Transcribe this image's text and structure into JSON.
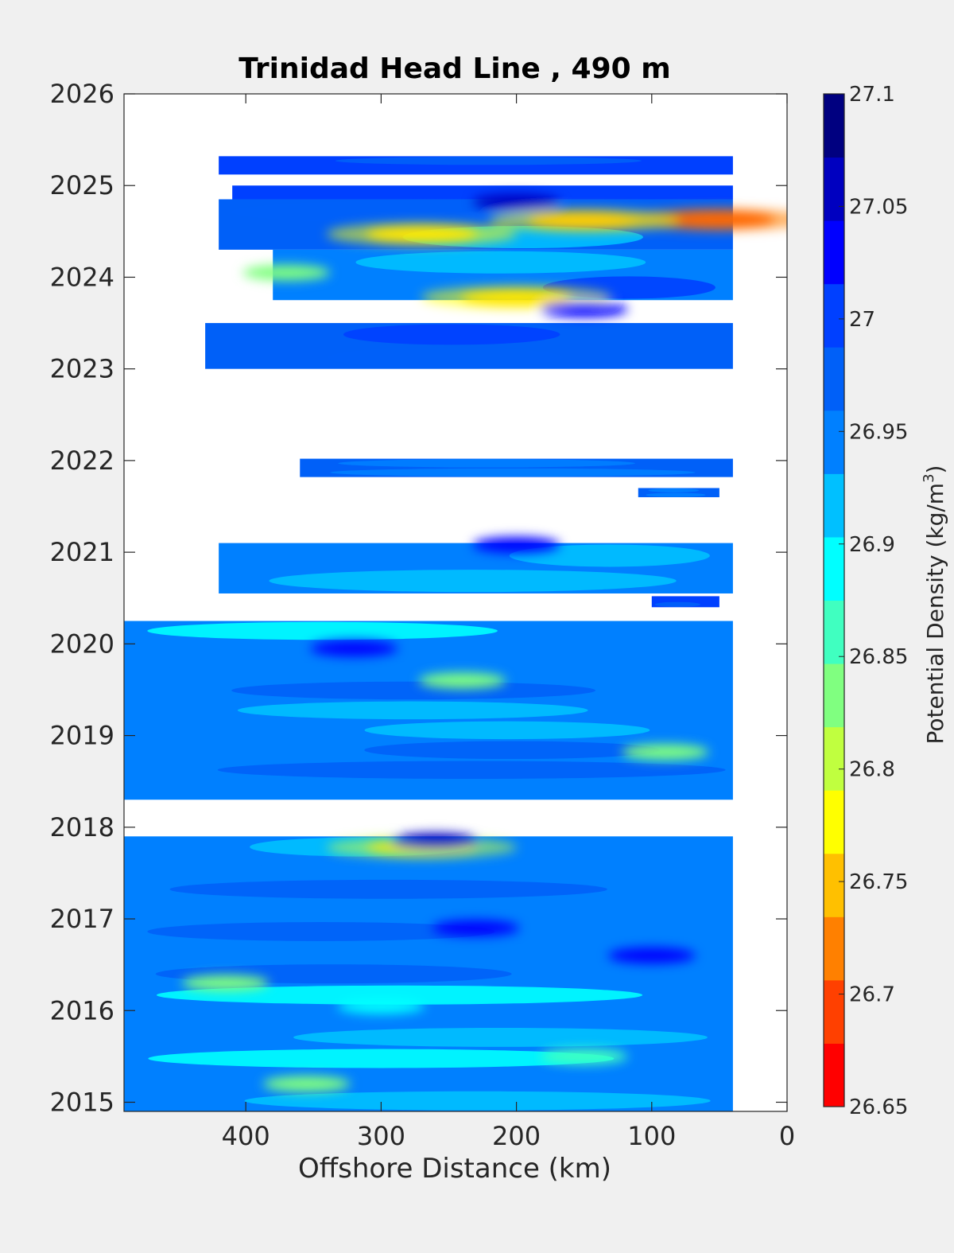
{
  "chart_data": {
    "type": "heatmap",
    "title": "Trinidad Head Line , 490 m",
    "xlabel": "Offshore Distance (km)",
    "ylabel": "",
    "xlim": [
      490,
      0
    ],
    "x_reversed": true,
    "ylim": [
      2014.9,
      2026
    ],
    "x_ticks": [
      400,
      300,
      200,
      100,
      0
    ],
    "y_ticks": [
      2015,
      2016,
      2017,
      2018,
      2019,
      2020,
      2021,
      2022,
      2023,
      2024,
      2025,
      2026
    ],
    "grid": false,
    "colorbar": {
      "label_main": "Potential Density (kg/m",
      "label_sup": "3",
      "label_end": ")",
      "min": 26.65,
      "max": 27.1,
      "tick_values": [
        26.65,
        26.7,
        26.75,
        26.8,
        26.85,
        26.9,
        26.95,
        27,
        27.05,
        27.1
      ],
      "tick_labels": [
        "26.65",
        "26.7",
        "26.75",
        "26.8",
        "26.85",
        "26.9",
        "26.95",
        "27",
        "27.05",
        "27.1"
      ],
      "colors": [
        "#ff0000",
        "#ff4000",
        "#ff8000",
        "#ffc000",
        "#ffff00",
        "#c0ff3f",
        "#80ff80",
        "#40ffc0",
        "#00ffff",
        "#00c0ff",
        "#0080ff",
        "#0060f8",
        "#0040ff",
        "#0000ff",
        "#0000c0",
        "#000080"
      ]
    },
    "data_bands": [
      {
        "y": [
          2025.12,
          2025.32
        ],
        "x": [
          420,
          40
        ],
        "base": 27.0
      },
      {
        "y": [
          2024.85,
          2025.0
        ],
        "x": [
          410,
          40
        ],
        "base": 26.99
      },
      {
        "y": [
          2024.3,
          2024.85
        ],
        "x": [
          420,
          40
        ],
        "base": 26.96
      },
      {
        "y": [
          2023.75,
          2024.3
        ],
        "x": [
          380,
          40
        ],
        "base": 26.95
      },
      {
        "y": [
          2023.0,
          2023.5
        ],
        "x": [
          430,
          40
        ],
        "base": 26.96
      },
      {
        "y": [
          2021.82,
          2022.02
        ],
        "x": [
          360,
          40
        ],
        "base": 26.97
      },
      {
        "y": [
          2021.6,
          2021.7
        ],
        "x": [
          110,
          50
        ],
        "base": 26.97
      },
      {
        "y": [
          2020.55,
          2021.1
        ],
        "x": [
          420,
          40
        ],
        "base": 26.95
      },
      {
        "y": [
          2020.4,
          2020.52
        ],
        "x": [
          100,
          50
        ],
        "base": 26.99
      },
      {
        "y": [
          2018.3,
          2020.25
        ],
        "x": [
          490,
          40
        ],
        "base": 26.94
      },
      {
        "y": [
          2014.9,
          2017.9
        ],
        "x": [
          490,
          40
        ],
        "base": 26.94
      }
    ],
    "anomalies": [
      {
        "x": 50,
        "y": 2024.63,
        "value": 26.68
      },
      {
        "x": 150,
        "y": 2024.62,
        "value": 26.73
      },
      {
        "x": 270,
        "y": 2024.47,
        "value": 26.74
      },
      {
        "x": 200,
        "y": 2023.78,
        "value": 26.74
      },
      {
        "x": 240,
        "y": 2019.6,
        "value": 26.83
      },
      {
        "x": 90,
        "y": 2018.82,
        "value": 26.84
      },
      {
        "x": 270,
        "y": 2017.78,
        "value": 26.76
      },
      {
        "x": 415,
        "y": 2016.3,
        "value": 26.84
      },
      {
        "x": 355,
        "y": 2015.2,
        "value": 26.84
      },
      {
        "x": 370,
        "y": 2024.05,
        "value": 26.83
      },
      {
        "x": 200,
        "y": 2024.82,
        "value": 27.06
      },
      {
        "x": 260,
        "y": 2017.85,
        "value": 27.07
      },
      {
        "x": 100,
        "y": 2016.6,
        "value": 27.03
      },
      {
        "x": 230,
        "y": 2016.9,
        "value": 27.02
      },
      {
        "x": 150,
        "y": 2023.65,
        "value": 27.02
      },
      {
        "x": 320,
        "y": 2019.95,
        "value": 27.02
      },
      {
        "x": 200,
        "y": 2021.08,
        "value": 27.04
      },
      {
        "x": 150,
        "y": 2015.5,
        "value": 26.87
      },
      {
        "x": 300,
        "y": 2016.05,
        "value": 26.88
      }
    ]
  }
}
